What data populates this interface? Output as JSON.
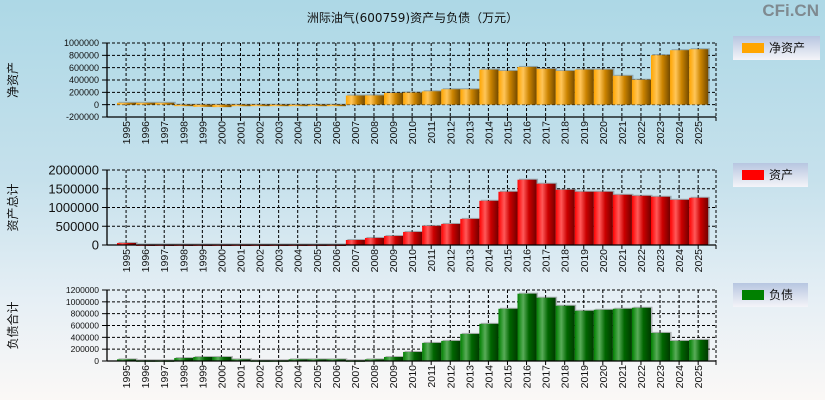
{
  "title": "洲际油气(600759)资产与负债（万元）",
  "watermark": "CFi.CN",
  "chart_data": [
    {
      "type": "bar",
      "ylabel": "净资产",
      "legend": "净资产",
      "color": "#ffa500",
      "ylim": [
        -200000,
        1000000
      ],
      "yticks": [
        -200000,
        0,
        200000,
        400000,
        600000,
        800000,
        1000000
      ],
      "categories": [
        "1995",
        "1996",
        "1997",
        "1998",
        "1999",
        "2000",
        "2001",
        "2002",
        "2003",
        "2004",
        "2005",
        "2006",
        "2007",
        "2008",
        "2009",
        "2010",
        "2011",
        "2012",
        "2013",
        "2014",
        "2015",
        "2016",
        "2017",
        "2018",
        "2019",
        "2020",
        "2021",
        "2022",
        "2023",
        "2024",
        "2025"
      ],
      "values": [
        30000,
        30000,
        30000,
        -5000,
        -35000,
        -40000,
        -25000,
        -10000,
        -10000,
        -10000,
        -10000,
        -10000,
        148000,
        150000,
        190000,
        196000,
        217000,
        250000,
        250000,
        569000,
        548000,
        612000,
        580000,
        548000,
        569000,
        569000,
        468000,
        404000,
        803000,
        883000,
        899000
      ]
    },
    {
      "type": "bar",
      "ylabel": "资产总计",
      "legend": "资产",
      "color": "#ff0000",
      "ylim": [
        0,
        2000000
      ],
      "yticks": [
        0,
        500000,
        1000000,
        1500000,
        2000000
      ],
      "categories": [
        "1995",
        "1996",
        "1997",
        "1998",
        "1999",
        "2000",
        "2001",
        "2002",
        "2003",
        "2004",
        "2005",
        "2006",
        "2007",
        "2008",
        "2009",
        "2010",
        "2011",
        "2012",
        "2013",
        "2014",
        "2015",
        "2016",
        "2017",
        "2018",
        "2019",
        "2020",
        "2021",
        "2022",
        "2023",
        "2024",
        "2025"
      ],
      "values": [
        54000,
        15000,
        15000,
        15000,
        15000,
        15000,
        15000,
        15000,
        15000,
        15000,
        15000,
        15000,
        134000,
        188000,
        241000,
        348000,
        509000,
        562000,
        696000,
        1179000,
        1420000,
        1741000,
        1634000,
        1473000,
        1420000,
        1420000,
        1339000,
        1312000,
        1286000,
        1205000,
        1259000
      ]
    },
    {
      "type": "bar",
      "ylabel": "负债合计",
      "legend": "负债",
      "color": "#008000",
      "ylim": [
        0,
        1200000
      ],
      "yticks": [
        0,
        200000,
        400000,
        600000,
        800000,
        1000000,
        1200000
      ],
      "categories": [
        "1995",
        "1996",
        "1997",
        "1998",
        "1999",
        "2000",
        "2001",
        "2002",
        "2003",
        "2004",
        "2005",
        "2006",
        "2007",
        "2008",
        "2009",
        "2010",
        "2011",
        "2012",
        "2013",
        "2014",
        "2015",
        "2016",
        "2017",
        "2018",
        "2019",
        "2020",
        "2021",
        "2022",
        "2023",
        "2024",
        "2025"
      ],
      "values": [
        28000,
        12000,
        12000,
        50000,
        68000,
        68000,
        28000,
        12000,
        12000,
        28000,
        28000,
        28000,
        12000,
        28000,
        68000,
        153000,
        306000,
        340000,
        458000,
        628000,
        883000,
        1138000,
        1070000,
        934000,
        849000,
        866000,
        883000,
        900000,
        475000,
        340000,
        357000
      ]
    }
  ]
}
